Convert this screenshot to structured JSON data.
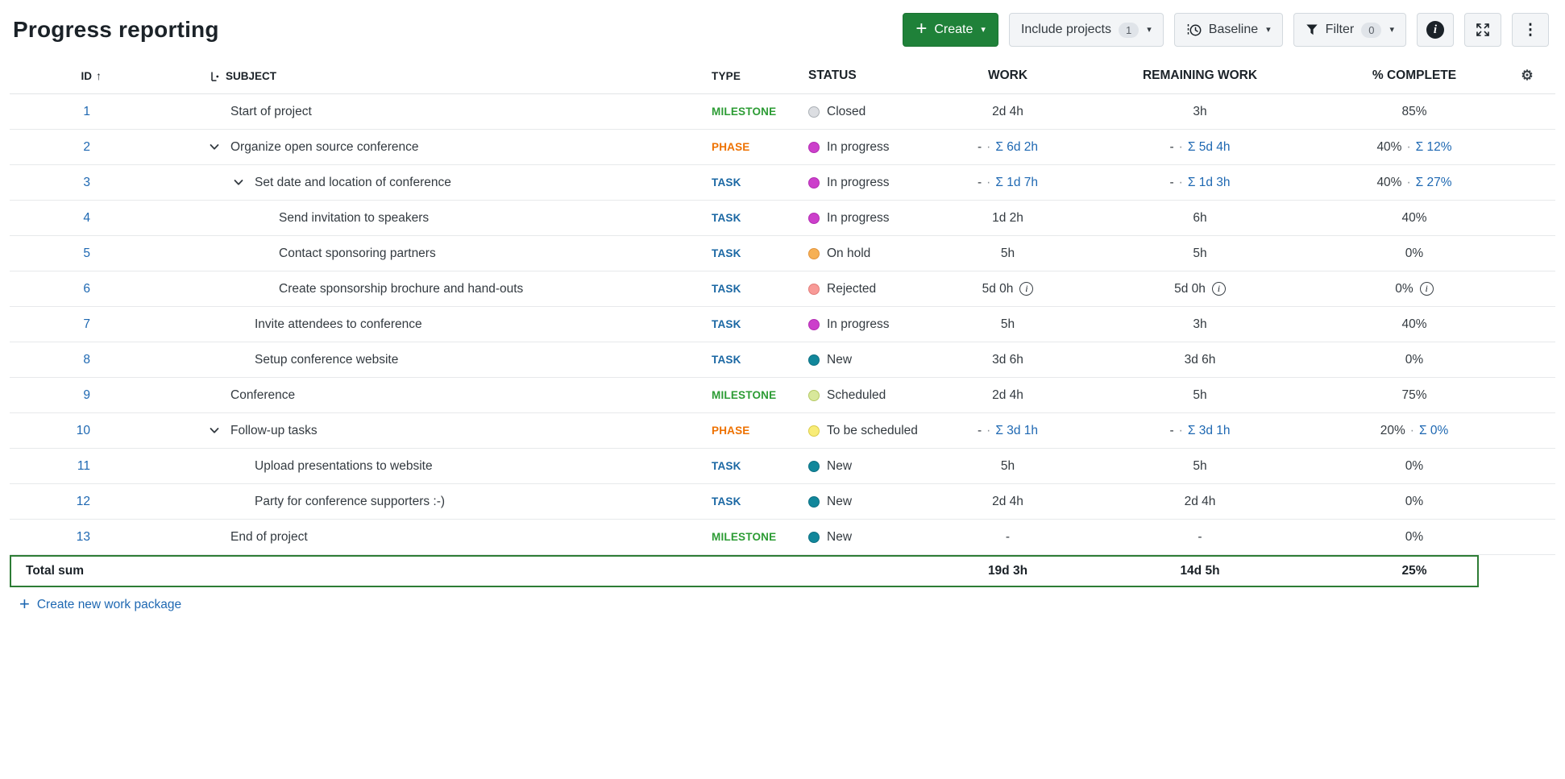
{
  "page": {
    "title": "Progress reporting"
  },
  "icons": {
    "caret": "▾",
    "kebab": "⋮",
    "gear": "⚙",
    "sort_asc": "↑",
    "plus": "+",
    "info_letter": "i"
  },
  "labels": {
    "sum_prefix": "Σ",
    "separator": "·"
  },
  "toolbar": {
    "create_label": "Create",
    "include_projects_label": "Include projects",
    "include_projects_count": "1",
    "baseline_label": "Baseline",
    "filter_label": "Filter",
    "filter_count": "0"
  },
  "table": {
    "columns": {
      "id": "ID",
      "subject": "SUBJECT",
      "type": "TYPE",
      "status": "STATUS",
      "work": "WORK",
      "remaining_work": "REMAINING WORK",
      "percent_complete": "% COMPLETE"
    },
    "rows": [
      {
        "id": "1",
        "indent": 0,
        "chevron": false,
        "subject": "Start of project",
        "type": "MILESTONE",
        "status": "Closed",
        "work": "2d 4h",
        "work_sum": null,
        "remaining": "3h",
        "remaining_sum": null,
        "percent": "85%",
        "percent_sum": null,
        "info": false
      },
      {
        "id": "2",
        "indent": 0,
        "chevron": true,
        "subject": "Organize open source conference",
        "type": "PHASE",
        "status": "In progress",
        "work": "-",
        "work_sum": "6d 2h",
        "remaining": "-",
        "remaining_sum": "5d 4h",
        "percent": "40%",
        "percent_sum": "12%",
        "info": false
      },
      {
        "id": "3",
        "indent": 1,
        "chevron": true,
        "subject": "Set date and location of conference",
        "type": "TASK",
        "status": "In progress",
        "work": "-",
        "work_sum": "1d 7h",
        "remaining": "-",
        "remaining_sum": "1d 3h",
        "percent": "40%",
        "percent_sum": "27%",
        "info": false
      },
      {
        "id": "4",
        "indent": 2,
        "chevron": false,
        "subject": "Send invitation to speakers",
        "type": "TASK",
        "status": "In progress",
        "work": "1d 2h",
        "work_sum": null,
        "remaining": "6h",
        "remaining_sum": null,
        "percent": "40%",
        "percent_sum": null,
        "info": false
      },
      {
        "id": "5",
        "indent": 2,
        "chevron": false,
        "subject": "Contact sponsoring partners",
        "type": "TASK",
        "status": "On hold",
        "work": "5h",
        "work_sum": null,
        "remaining": "5h",
        "remaining_sum": null,
        "percent": "0%",
        "percent_sum": null,
        "info": false
      },
      {
        "id": "6",
        "indent": 2,
        "chevron": false,
        "subject": "Create sponsorship brochure and hand-outs",
        "type": "TASK",
        "status": "Rejected",
        "work": "5d 0h",
        "work_sum": null,
        "remaining": "5d 0h",
        "remaining_sum": null,
        "percent": "0%",
        "percent_sum": null,
        "info": true
      },
      {
        "id": "7",
        "indent": 1,
        "chevron": false,
        "subject": "Invite attendees to conference",
        "type": "TASK",
        "status": "In progress",
        "work": "5h",
        "work_sum": null,
        "remaining": "3h",
        "remaining_sum": null,
        "percent": "40%",
        "percent_sum": null,
        "info": false
      },
      {
        "id": "8",
        "indent": 1,
        "chevron": false,
        "subject": "Setup conference website",
        "type": "TASK",
        "status": "New",
        "work": "3d 6h",
        "work_sum": null,
        "remaining": "3d 6h",
        "remaining_sum": null,
        "percent": "0%",
        "percent_sum": null,
        "info": false
      },
      {
        "id": "9",
        "indent": 0,
        "chevron": false,
        "subject": "Conference",
        "type": "MILESTONE",
        "status": "Scheduled",
        "work": "2d 4h",
        "work_sum": null,
        "remaining": "5h",
        "remaining_sum": null,
        "percent": "75%",
        "percent_sum": null,
        "info": false
      },
      {
        "id": "10",
        "indent": 0,
        "chevron": true,
        "subject": "Follow-up tasks",
        "type": "PHASE",
        "status": "To be scheduled",
        "work": "-",
        "work_sum": "3d 1h",
        "remaining": "-",
        "remaining_sum": "3d 1h",
        "percent": "20%",
        "percent_sum": "0%",
        "info": false
      },
      {
        "id": "11",
        "indent": 1,
        "chevron": false,
        "subject": "Upload presentations to website",
        "type": "TASK",
        "status": "New",
        "work": "5h",
        "work_sum": null,
        "remaining": "5h",
        "remaining_sum": null,
        "percent": "0%",
        "percent_sum": null,
        "info": false
      },
      {
        "id": "12",
        "indent": 1,
        "chevron": false,
        "subject": "Party for conference supporters :-)",
        "type": "TASK",
        "status": "New",
        "work": "2d 4h",
        "work_sum": null,
        "remaining": "2d 4h",
        "remaining_sum": null,
        "percent": "0%",
        "percent_sum": null,
        "info": false
      },
      {
        "id": "13",
        "indent": 0,
        "chevron": false,
        "subject": "End of project",
        "type": "MILESTONE",
        "status": "New",
        "work": "-",
        "work_sum": null,
        "remaining": "-",
        "remaining_sum": null,
        "percent": "0%",
        "percent_sum": null,
        "info": false
      }
    ],
    "total": {
      "label": "Total sum",
      "work": "19d 3h",
      "remaining_work": "14d 5h",
      "percent_complete": "25%"
    }
  },
  "footer": {
    "create_link": "Create new work package"
  },
  "colors": {
    "link": "#1E68B2",
    "total_border": "#2D7C35",
    "create_button": "#1F8139",
    "type": {
      "MILESTONE": "#2D9C35",
      "PHASE": "#EE7100",
      "TASK": "#1A67A3"
    },
    "status": {
      "Closed": {
        "bg": "#DCDEE2",
        "border": "#ABB0B5"
      },
      "In progress": {
        "bg": "#CC3FCB",
        "border": "#B32DB3"
      },
      "On hold": {
        "bg": "#F6B055",
        "border": "#E2933A"
      },
      "Rejected": {
        "bg": "#F89A97",
        "border": "#E27C79"
      },
      "New": {
        "bg": "#11879B",
        "border": "#0E7083"
      },
      "Scheduled": {
        "bg": "#D8E89B",
        "border": "#B4C964"
      },
      "To be scheduled": {
        "bg": "#F8EC77",
        "border": "#DACC49"
      }
    }
  }
}
